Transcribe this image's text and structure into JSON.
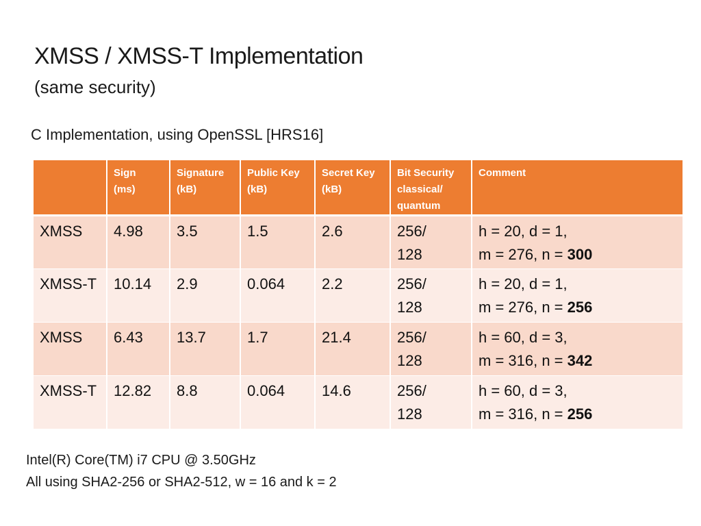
{
  "slide": {
    "title": "XMSS / XMSS-T Implementation",
    "subtitle": "(same security)",
    "implementation_note": "C Implementation, using OpenSSL [HRS16]"
  },
  "table": {
    "headers": [
      {
        "line1": "",
        "line2": "",
        "line3": ""
      },
      {
        "line1": "Sign",
        "line2": "(ms)",
        "line3": ""
      },
      {
        "line1": "Signature",
        "line2": "(kB)",
        "line3": ""
      },
      {
        "line1": "Public Key",
        "line2": "(kB)",
        "line3": ""
      },
      {
        "line1": "Secret Key",
        "line2": "(kB)",
        "line3": ""
      },
      {
        "line1": "Bit Security",
        "line2": "classical/",
        "line3": "quantum"
      },
      {
        "line1": "Comment",
        "line2": "",
        "line3": ""
      }
    ],
    "rows": [
      {
        "scheme": "XMSS",
        "sign_ms": "4.98",
        "signature_kb": "3.5",
        "public_key_kb": "1.5",
        "secret_key_kb": "2.6",
        "bit_security_classical": "256/",
        "bit_security_quantum": "128",
        "comment_line1": "h = 20, d = 1,",
        "comment_line2_prefix": "m = 276, n = ",
        "comment_line2_bold": "300"
      },
      {
        "scheme": "XMSS-T",
        "sign_ms": "10.14",
        "signature_kb": "2.9",
        "public_key_kb": "0.064",
        "secret_key_kb": "2.2",
        "bit_security_classical": "256/",
        "bit_security_quantum": "128",
        "comment_line1": "h = 20, d = 1,",
        "comment_line2_prefix": "m = 276, n = ",
        "comment_line2_bold": "256"
      },
      {
        "scheme": "XMSS",
        "sign_ms": "6.43",
        "signature_kb": "13.7",
        "public_key_kb": "1.7",
        "secret_key_kb": "21.4",
        "bit_security_classical": "256/",
        "bit_security_quantum": "128",
        "comment_line1": "h = 60, d = 3,",
        "comment_line2_prefix": "m = 316, n = ",
        "comment_line2_bold": "342"
      },
      {
        "scheme": "XMSS-T",
        "sign_ms": "12.82",
        "signature_kb": "8.8",
        "public_key_kb": "0.064",
        "secret_key_kb": "14.6",
        "bit_security_classical": "256/",
        "bit_security_quantum": "128",
        "comment_line1": "h = 60, d = 3,",
        "comment_line2_prefix": "m = 316, n = ",
        "comment_line2_bold": "256"
      }
    ]
  },
  "footer": {
    "line1": "Intel(R) Core(TM) i7 CPU @ 3.50GHz",
    "line2": "All using SHA2-256 or SHA2-512, w = 16 and k = 2"
  },
  "colors": {
    "header_bg": "#ED7D31",
    "row_odd_bg": "#F9D9CB",
    "row_even_bg": "#FCECE6"
  }
}
